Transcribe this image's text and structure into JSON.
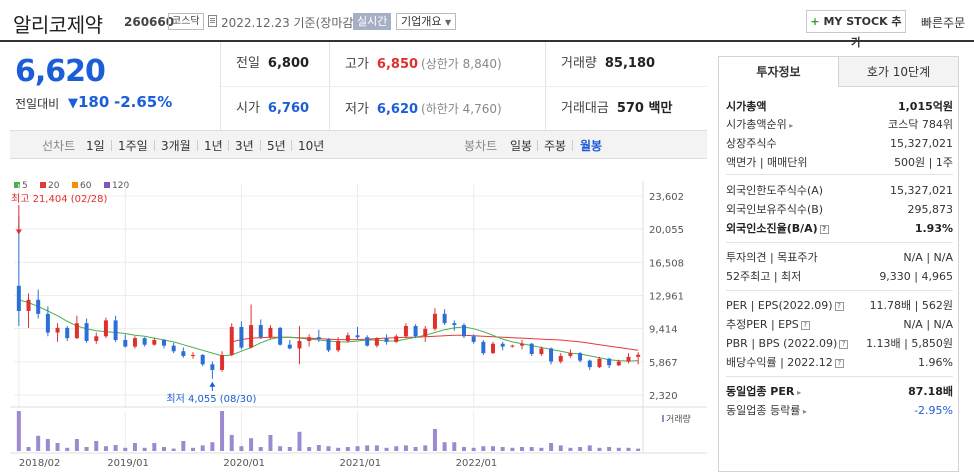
{
  "header": {
    "company_name": "알리코제약",
    "code": "260660",
    "market": "코스닥",
    "date_text": "2022.12.23  기준(장마감)",
    "realtime_label": "실시간",
    "company_info_label": "기업개요",
    "mystock_label": "MY STOCK 추가",
    "mystock_plus": "+",
    "quick_order_label": "빠른주문"
  },
  "price": {
    "current": "6,620",
    "change_label": "전일대비",
    "change_arrow": "▼",
    "change_value": "180",
    "change_pct": "-2.65%"
  },
  "quotes": {
    "prev_label": "전일",
    "prev_value": "6,800",
    "high_label": "고가",
    "high_value": "6,850",
    "high_sub": "(상한가 8,840)",
    "volume_label": "거래량",
    "volume_value": "85,180",
    "open_label": "시가",
    "open_value": "6,760",
    "low_label": "저가",
    "low_value": "6,620",
    "low_sub": "(하한가 4,760)",
    "amount_label": "거래대금",
    "amount_value": "570 백만"
  },
  "periods": {
    "line_label": "선차트",
    "line_items": [
      "1일",
      "1주일",
      "3개월",
      "1년",
      "3년",
      "5년",
      "10년"
    ],
    "candle_label": "봉차트",
    "candle_items": [
      "일봉",
      "주봉",
      "월봉"
    ],
    "selected": "월봉"
  },
  "chart_data": {
    "type": "candlestick",
    "period": "monthly",
    "ma_legend": [
      {
        "name": "5",
        "color": "#4caf50"
      },
      {
        "name": "20",
        "color": "#e53935"
      },
      {
        "name": "60",
        "color": "#fb8c00"
      },
      {
        "name": "120",
        "color": "#7e57c2"
      }
    ],
    "y_ticks": [
      "23,602",
      "20,055",
      "16,508",
      "12,961",
      "9,414",
      "5,867",
      "2,320"
    ],
    "y_tick_values": [
      23602,
      20055,
      16508,
      12961,
      9414,
      5867,
      2320
    ],
    "x_ticks": [
      "2018/02",
      "2019/01",
      "2020/01",
      "2021/01",
      "2022/01"
    ],
    "high_label": "최고 21,404 (02/28)",
    "low_label": "최저 4,055 (08/30)",
    "volume_label": "거래량",
    "colors": {
      "up": "#e0302e",
      "down": "#2b6fd6",
      "ma5": "#4caf50",
      "ma20": "#e53935",
      "volume": "#9c8ad0"
    },
    "candles": [
      [
        14000,
        21404,
        9700,
        11300
      ],
      [
        11300,
        13200,
        9500,
        12500
      ],
      [
        12500,
        13600,
        10500,
        11000
      ],
      [
        11000,
        11800,
        8600,
        9000
      ],
      [
        9000,
        10000,
        8000,
        9500
      ],
      [
        9500,
        9700,
        8100,
        8400
      ],
      [
        8400,
        10800,
        8300,
        10000
      ],
      [
        10000,
        10500,
        7900,
        8100
      ],
      [
        8100,
        9000,
        7800,
        8600
      ],
      [
        8600,
        10600,
        8400,
        10300
      ],
      [
        10300,
        10800,
        8000,
        8200
      ],
      [
        8200,
        8800,
        7400,
        7500
      ],
      [
        7500,
        8600,
        7300,
        8400
      ],
      [
        8400,
        8500,
        7500,
        7700
      ],
      [
        7700,
        8400,
        7600,
        8200
      ],
      [
        8200,
        8300,
        7300,
        7600
      ],
      [
        7600,
        7900,
        6800,
        7000
      ],
      [
        7000,
        7400,
        6300,
        6500
      ],
      [
        6500,
        6900,
        6200,
        6600
      ],
      [
        6600,
        6700,
        5400,
        5600
      ],
      [
        5600,
        5900,
        4055,
        5000
      ],
      [
        5000,
        7000,
        4800,
        6600
      ],
      [
        6600,
        10000,
        6500,
        9600
      ],
      [
        9600,
        10200,
        7200,
        7400
      ],
      [
        7400,
        12000,
        7300,
        9800
      ],
      [
        9800,
        10400,
        8300,
        8500
      ],
      [
        8500,
        9800,
        8300,
        9500
      ],
      [
        9500,
        9600,
        7600,
        7700
      ],
      [
        7700,
        8200,
        7200,
        7300
      ],
      [
        7300,
        9700,
        5600,
        8100
      ],
      [
        8100,
        8800,
        7500,
        8500
      ],
      [
        8500,
        9300,
        8000,
        8300
      ],
      [
        8300,
        8400,
        6900,
        7100
      ],
      [
        7100,
        8500,
        6900,
        8100
      ],
      [
        8100,
        9000,
        7900,
        8700
      ],
      [
        8700,
        9600,
        8300,
        8500
      ],
      [
        8500,
        8700,
        7500,
        7600
      ],
      [
        7600,
        8500,
        7400,
        8400
      ],
      [
        8400,
        8800,
        7700,
        8000
      ],
      [
        8000,
        8800,
        7900,
        8600
      ],
      [
        8600,
        10000,
        8400,
        9700
      ],
      [
        9700,
        9900,
        8400,
        8600
      ],
      [
        8600,
        9700,
        8000,
        9400
      ],
      [
        9400,
        11600,
        9200,
        11000
      ],
      [
        11000,
        11500,
        9800,
        10000
      ],
      [
        10000,
        10300,
        9200,
        9800
      ],
      [
        9800,
        10000,
        8400,
        8600
      ],
      [
        8600,
        8800,
        7800,
        8000
      ],
      [
        8000,
        8200,
        6600,
        6800
      ],
      [
        6800,
        8000,
        6700,
        7800
      ],
      [
        7800,
        8000,
        7100,
        7500
      ],
      [
        7500,
        7700,
        7400,
        7600
      ],
      [
        7600,
        8200,
        7200,
        7800
      ],
      [
        7800,
        7900,
        6500,
        6700
      ],
      [
        6700,
        7500,
        6500,
        7300
      ],
      [
        7300,
        7400,
        5600,
        5900
      ],
      [
        5900,
        6800,
        5700,
        6500
      ],
      [
        6500,
        7200,
        6300,
        6800
      ],
      [
        6800,
        6900,
        5800,
        6000
      ],
      [
        6000,
        6100,
        5000,
        5300
      ],
      [
        5300,
        6400,
        5200,
        6200
      ],
      [
        6200,
        6300,
        5200,
        5500
      ],
      [
        5500,
        6100,
        5400,
        5900
      ],
      [
        5900,
        6800,
        5700,
        6400
      ],
      [
        6400,
        6900,
        5600,
        6620
      ]
    ],
    "ma5": [
      12500,
      12200,
      11800,
      11300,
      10800,
      10200,
      9700,
      9400,
      9200,
      9100,
      9000,
      8900,
      8700,
      8600,
      8400,
      8200,
      8000,
      7700,
      7400,
      7100,
      6800,
      6500,
      6600,
      7000,
      7400,
      7900,
      8300,
      8500,
      8500,
      8400,
      8300,
      8200,
      8100,
      8000,
      8000,
      8100,
      8200,
      8200,
      8100,
      8100,
      8300,
      8500,
      8700,
      9000,
      9300,
      9500,
      9600,
      9400,
      9100,
      8700,
      8300,
      8000,
      7800,
      7600,
      7400,
      7200,
      7000,
      6800,
      6700,
      6500,
      6300,
      6100,
      6000,
      5950,
      6000
    ],
    "ma20": [
      null,
      null,
      null,
      null,
      null,
      null,
      null,
      null,
      null,
      null,
      null,
      null,
      null,
      null,
      null,
      null,
      null,
      null,
      null,
      null,
      null,
      null,
      8000,
      8250,
      8400,
      8450,
      8500,
      8500,
      8500,
      8450,
      8400,
      8350,
      8300,
      8250,
      8250,
      8250,
      8300,
      8350,
      8400,
      8450,
      8500,
      8500,
      8550,
      8600,
      8650,
      8700,
      8700,
      8650,
      8600,
      8550,
      8500,
      8450,
      8400,
      8350,
      8300,
      8250,
      8200,
      8100,
      8000,
      7850,
      7700,
      7550,
      7400,
      7250,
      7100
    ],
    "volume": [
      100,
      10,
      38,
      30,
      20,
      8,
      30,
      10,
      25,
      12,
      15,
      8,
      20,
      8,
      20,
      10,
      6,
      25,
      8,
      14,
      22,
      100,
      40,
      12,
      32,
      10,
      40,
      12,
      10,
      48,
      10,
      15,
      12,
      8,
      10,
      12,
      14,
      14,
      8,
      12,
      14,
      10,
      14,
      55,
      22,
      22,
      10,
      8,
      12,
      12,
      10,
      8,
      10,
      10,
      8,
      20,
      14,
      8,
      10,
      14,
      8,
      10,
      8,
      8,
      6
    ]
  },
  "right_panel": {
    "tab_active": "투자정보",
    "tab_other": "호가 10단계",
    "rows": [
      {
        "k": "시가총액",
        "v": "1,015억원",
        "bold": true
      },
      {
        "k": "시가총액순위",
        "v": "코스닥 784위",
        "arrow": true
      },
      {
        "k": "상장주식수",
        "v": "15,327,021"
      },
      {
        "k": "액면가 | 매매단위",
        "v": "500원 | 1주"
      },
      {
        "k": "외국인한도주식수(A)",
        "v": "15,327,021"
      },
      {
        "k": "외국인보유주식수(B)",
        "v": "295,873"
      },
      {
        "k": "외국인소진율(B/A)",
        "v": "1.93%",
        "bold": true,
        "q": true
      },
      {
        "k": "투자의견 | 목표주가",
        "v": "N/A | N/A"
      },
      {
        "k": "52주최고 | 최저",
        "v": "9,330 | 4,965"
      },
      {
        "k": "PER | EPS(2022.09)",
        "v": "11.78배 | 562원",
        "q": true
      },
      {
        "k": "추정PER | EPS",
        "v": "N/A | N/A",
        "q": true
      },
      {
        "k": "PBR | BPS (2022.09)",
        "v": "1.13배 | 5,850원",
        "q": true
      },
      {
        "k": "배당수익률 | 2022.12",
        "v": "1.96%",
        "q": true
      },
      {
        "k": "동일업종 PER",
        "v": "87.18배",
        "bold": true,
        "arrow": true
      },
      {
        "k": "동일업종 등락률",
        "v": "-2.95%",
        "arrow": true,
        "blue": true
      }
    ]
  }
}
